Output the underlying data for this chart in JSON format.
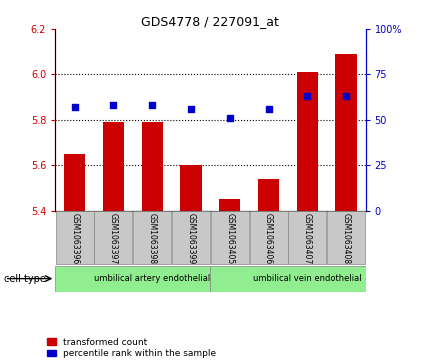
{
  "title": "GDS4778 / 227091_at",
  "samples": [
    "GSM1063396",
    "GSM1063397",
    "GSM1063398",
    "GSM1063399",
    "GSM1063405",
    "GSM1063406",
    "GSM1063407",
    "GSM1063408"
  ],
  "transformed_counts": [
    5.65,
    5.79,
    5.79,
    5.6,
    5.45,
    5.54,
    6.01,
    6.09
  ],
  "percentile_ranks": [
    57,
    58,
    58,
    56,
    51,
    56,
    63,
    63
  ],
  "ylim_left": [
    5.4,
    6.2
  ],
  "yticks_left": [
    5.4,
    5.6,
    5.8,
    6.0,
    6.2
  ],
  "ylim_right": [
    0,
    100
  ],
  "yticks_right": [
    0,
    25,
    50,
    75,
    100
  ],
  "bar_color": "#cc0000",
  "dot_color": "#0000cc",
  "bar_bottom": 5.4,
  "cell_types": [
    {
      "label": "umbilical artery endothelial",
      "start": 0,
      "end": 4
    },
    {
      "label": "umbilical vein endothelial",
      "start": 4,
      "end": 8
    }
  ],
  "cell_type_label": "cell type",
  "legend_bar_label": "transformed count",
  "legend_dot_label": "percentile rank within the sample",
  "bg_color": "#ffffff",
  "tick_area_color": "#c8c8c8",
  "cell_type_color": "#90EE90"
}
